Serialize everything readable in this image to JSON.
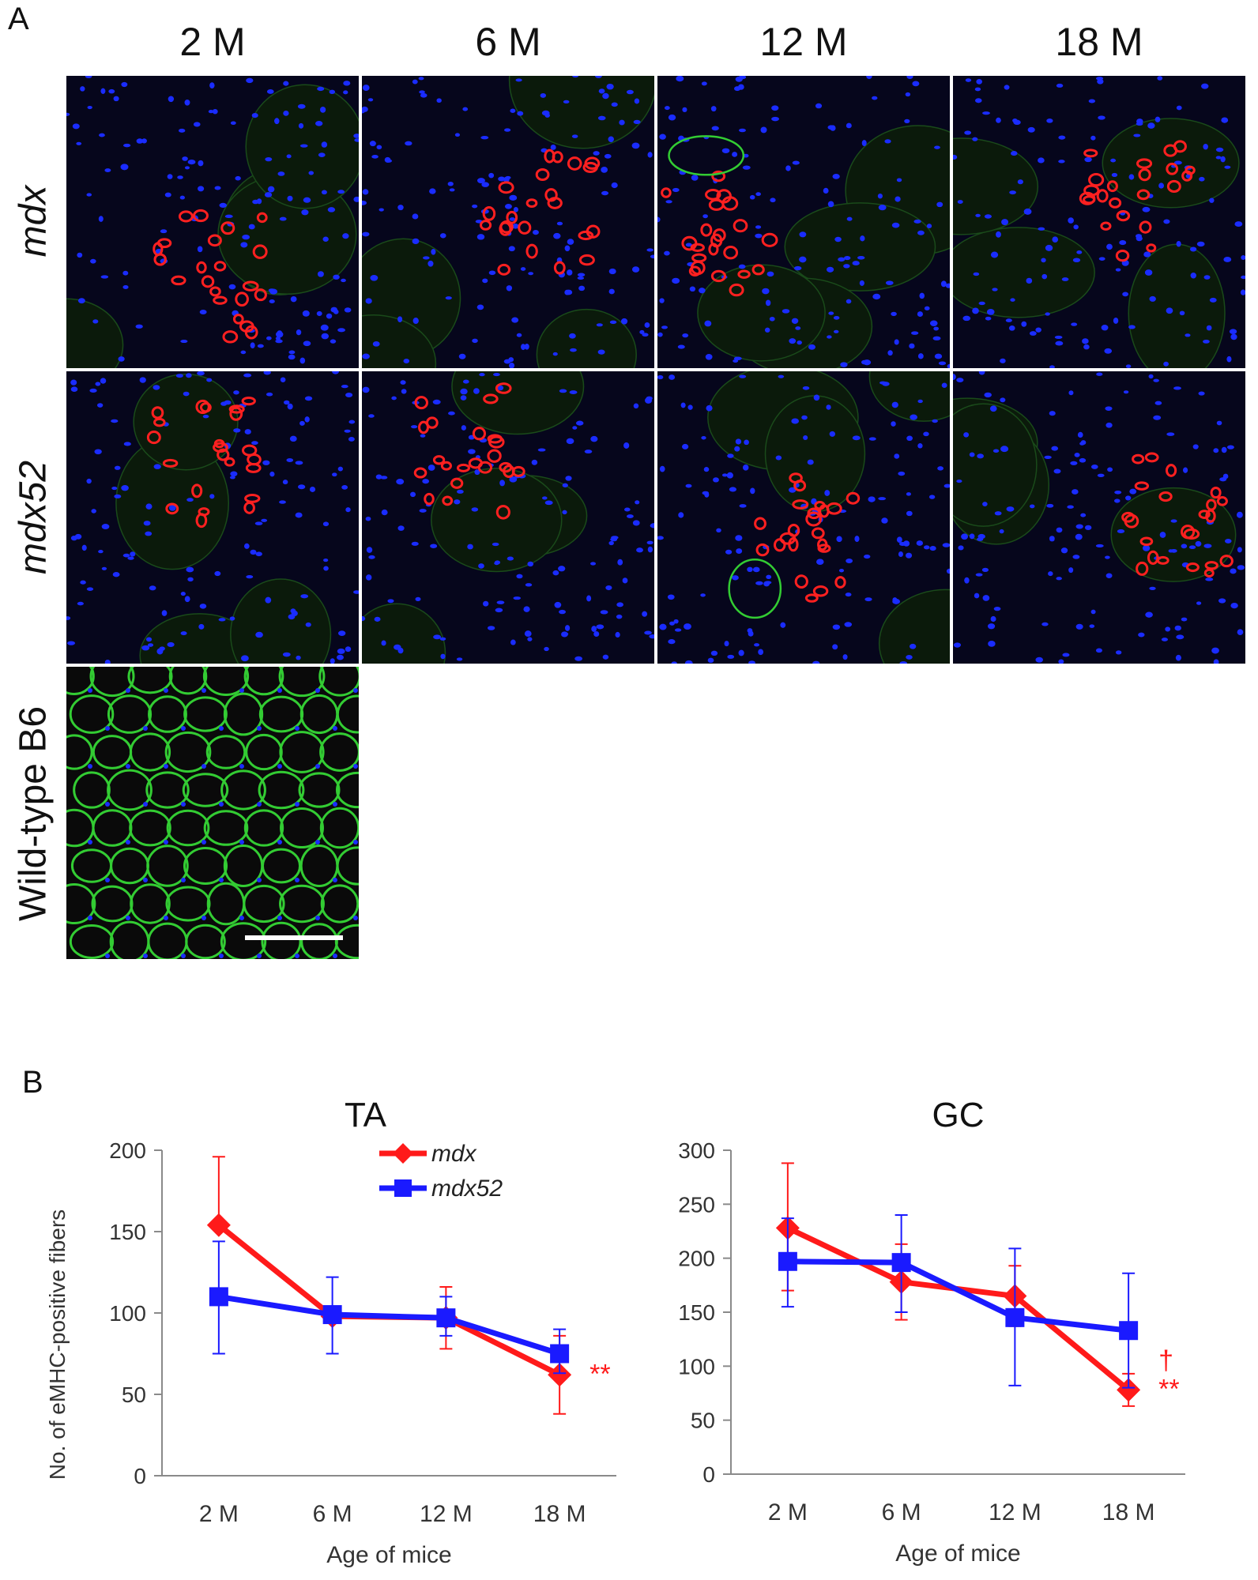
{
  "panels": {
    "a": "A",
    "b": "B"
  },
  "micrographs": {
    "columns": [
      "2 M",
      "6 M",
      "12 M",
      "18 M"
    ],
    "rows": [
      {
        "label": "mdx",
        "italic": true
      },
      {
        "label": "mdx52",
        "italic": true
      },
      {
        "label": "Wild-type B6",
        "italic": false
      }
    ],
    "stain_colors": {
      "background": "#06061c",
      "nuclei": "#1a2cff",
      "emhc": "#ff2020",
      "membrane": "#33cc33"
    }
  },
  "chart_data": [
    {
      "type": "line",
      "title": "TA",
      "xlabel": "Age of mice",
      "ylabel": "No. of eMHC-positive fibers",
      "categories": [
        "2 M",
        "6 M",
        "12 M",
        "18 M"
      ],
      "ylim": [
        0,
        200
      ],
      "yticks": [
        0,
        50,
        100,
        150,
        200
      ],
      "grid": false,
      "legend_position": "top-right",
      "series": [
        {
          "name": "mdx",
          "color": "#ff1a1a",
          "marker": "diamond",
          "values": [
            154,
            98,
            97,
            62
          ],
          "err_low": [
            154,
            98,
            78,
            38
          ],
          "err_high": [
            196,
            104,
            116,
            86
          ]
        },
        {
          "name": "mdx52",
          "color": "#1a1aff",
          "marker": "square",
          "values": [
            110,
            99,
            97,
            75
          ],
          "err_low": [
            75,
            75,
            86,
            63
          ],
          "err_high": [
            144,
            122,
            110,
            90
          ]
        }
      ],
      "annotations": [
        {
          "category": "18 M",
          "text": "**",
          "color": "#ff1a1a"
        }
      ]
    },
    {
      "type": "line",
      "title": "GC",
      "xlabel": "Age of mice",
      "ylabel": "",
      "categories": [
        "2 M",
        "6 M",
        "12 M",
        "18 M"
      ],
      "ylim": [
        0,
        300
      ],
      "yticks": [
        0,
        50,
        100,
        150,
        200,
        250,
        300
      ],
      "grid": false,
      "legend_position": "none",
      "series": [
        {
          "name": "mdx",
          "color": "#ff1a1a",
          "marker": "diamond",
          "values": [
            228,
            178,
            165,
            78
          ],
          "err_low": [
            170,
            143,
            137,
            63
          ],
          "err_high": [
            288,
            213,
            193,
            93
          ]
        },
        {
          "name": "mdx52",
          "color": "#1a1aff",
          "marker": "square",
          "values": [
            197,
            196,
            145,
            133
          ],
          "err_low": [
            155,
            150,
            82,
            80
          ],
          "err_high": [
            237,
            240,
            209,
            186
          ]
        }
      ],
      "annotations": [
        {
          "category": "18 M",
          "text": "†",
          "color": "#ff1a1a"
        },
        {
          "category": "18 M",
          "text": "**",
          "color": "#ff1a1a"
        }
      ]
    }
  ]
}
